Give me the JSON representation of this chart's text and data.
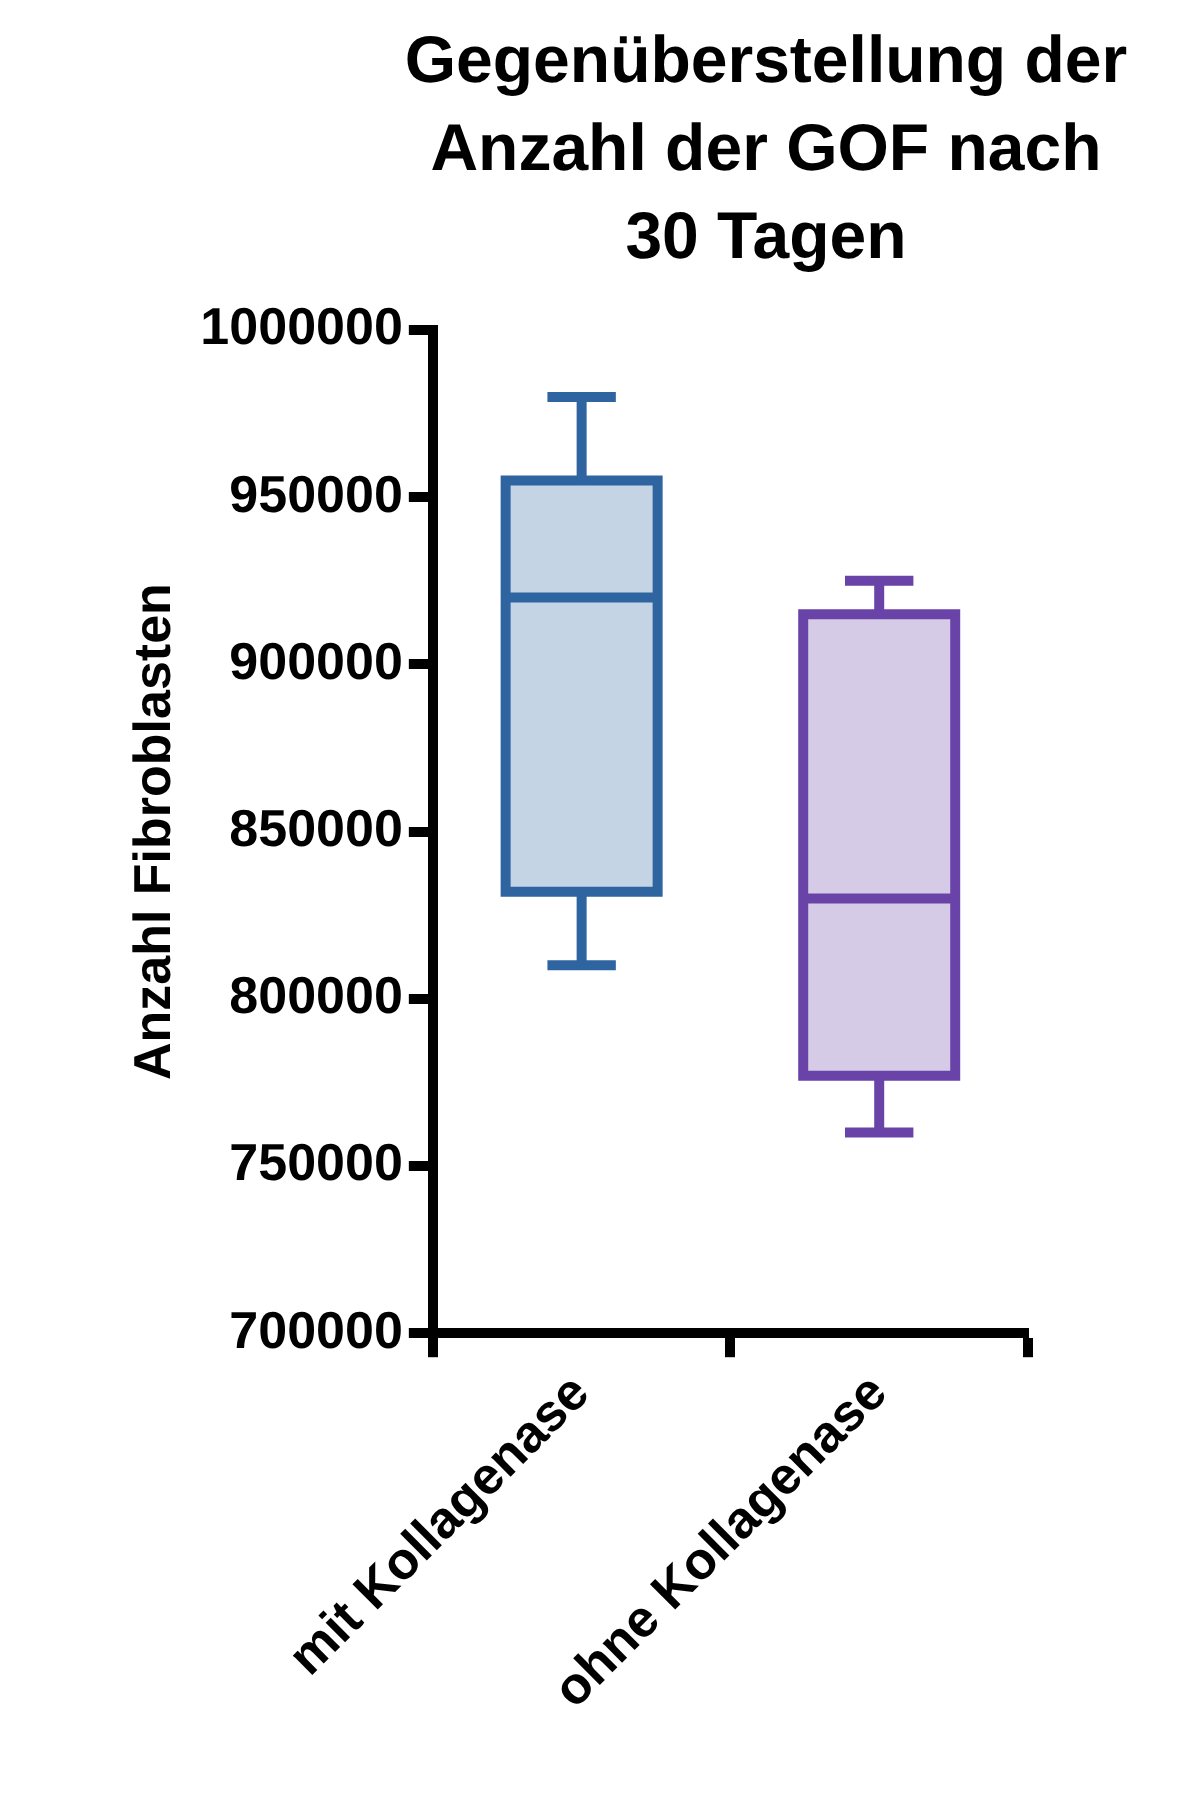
{
  "chart_data": {
    "type": "box",
    "title": "Gegenüberstellung der Anzahl der GOF nach 30 Tagen",
    "ylabel": "Anzahl Fibroblasten",
    "categories": [
      "mit Kollagenase",
      "ohne Kollagenase"
    ],
    "colors": [
      "#2e64a0",
      "#6a43a8"
    ],
    "boxes": [
      {
        "low": 810000,
        "q1": 832000,
        "median": 920000,
        "q3": 955000,
        "high": 980000
      },
      {
        "low": 760000,
        "q1": 777000,
        "median": 830000,
        "q3": 915000,
        "high": 925000
      }
    ],
    "ylim": [
      700000,
      1000000
    ],
    "yticks": [
      700000,
      750000,
      800000,
      850000,
      900000,
      950000,
      1000000
    ],
    "grid": false,
    "legend": false
  }
}
